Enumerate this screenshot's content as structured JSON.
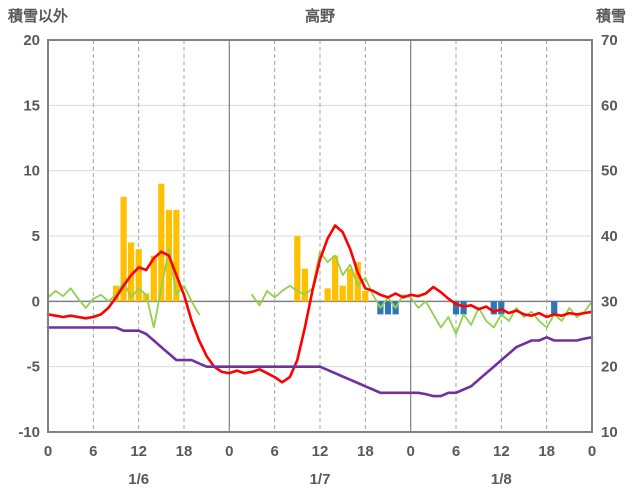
{
  "header": {
    "left_axis_label": "積雪以外",
    "title": "高野",
    "right_axis_label": "積雪"
  },
  "chart_data": {
    "type": "combo",
    "title": "高野",
    "legend": "none",
    "grid": true,
    "colors": {
      "h_grid": "#D9D9D9",
      "v_grid_dashed": "#A6A6A6",
      "axis": "#808080",
      "text": "#595959",
      "bars_orange": "#FFC000",
      "bars_blue": "#2E75B6",
      "line_red": "#FF0000",
      "line_green": "#92D050",
      "line_purple": "#7030A0"
    },
    "x_axis": {
      "min": 0,
      "max": 72,
      "hour_ticks": [
        0,
        6,
        12,
        18,
        24,
        30,
        36,
        42,
        48,
        54,
        60,
        66,
        72
      ],
      "hour_labels": [
        "0",
        "6",
        "12",
        "18",
        "0",
        "6",
        "12",
        "18",
        "0",
        "6",
        "12",
        "18",
        "0"
      ],
      "day_boundaries": [
        24,
        48
      ],
      "day_centers": [
        12,
        36,
        60
      ],
      "day_labels": [
        "1/6",
        "1/7",
        "1/8"
      ]
    },
    "left_axis": {
      "label": "積雪以外",
      "min": -10,
      "max": 20,
      "ticks": [
        20,
        15,
        10,
        5,
        0,
        -5,
        -10
      ]
    },
    "right_axis": {
      "label": "積雪",
      "min": 10,
      "max": 70,
      "ticks": [
        70,
        60,
        50,
        40,
        30,
        20,
        10
      ]
    },
    "series": [
      {
        "name": "bars-orange",
        "type": "bar",
        "axis": "left",
        "color": "#FFC000",
        "points": [
          [
            9,
            1.2
          ],
          [
            10,
            8
          ],
          [
            11,
            4.5
          ],
          [
            12,
            4
          ],
          [
            13,
            0.6
          ],
          [
            14,
            3.5
          ],
          [
            15,
            9
          ],
          [
            16,
            7
          ],
          [
            17,
            7
          ],
          [
            33,
            5
          ],
          [
            34,
            2.5
          ],
          [
            37,
            1
          ],
          [
            38,
            3.5
          ],
          [
            39,
            1.2
          ],
          [
            40,
            2.5
          ],
          [
            41,
            3
          ],
          [
            42,
            0.8
          ]
        ]
      },
      {
        "name": "bars-blue-negative",
        "type": "bar",
        "axis": "left",
        "color": "#2E75B6",
        "points": [
          [
            44,
            -1
          ],
          [
            45,
            -1
          ],
          [
            46,
            -1
          ],
          [
            54,
            -1
          ],
          [
            55,
            -1
          ],
          [
            59,
            -1
          ],
          [
            60,
            -1
          ],
          [
            67,
            -1
          ]
        ]
      },
      {
        "name": "line-green",
        "type": "line",
        "axis": "left",
        "color": "#92D050",
        "stroke_width": 1.8,
        "x_start": 0,
        "x_step": 1,
        "values": [
          0.3,
          0.8,
          0.4,
          1.0,
          0.2,
          -0.5,
          0.2,
          0.5,
          0.0,
          0.5,
          1.5,
          0.3,
          1.0,
          0.5,
          -2.0,
          1.0,
          4.0,
          0.5,
          1.2,
          0.0,
          -1.0,
          null,
          null,
          null,
          null,
          null,
          null,
          0.5,
          -0.3,
          0.8,
          0.3,
          0.8,
          1.2,
          0.8,
          0.5,
          1.0,
          3.8,
          3.0,
          3.5,
          2.0,
          2.8,
          1.2,
          1.8,
          0.5,
          -0.5,
          0.3,
          -0.5,
          0.5,
          0.3,
          -0.5,
          0.0,
          -1.0,
          -2.0,
          -1.2,
          -2.5,
          -1.0,
          -1.8,
          -0.5,
          -1.5,
          -2.0,
          -1.0,
          -1.5,
          -0.5,
          -1.2,
          -0.8,
          -1.5,
          -2.0,
          -1.0,
          -1.5,
          -0.5,
          -1.2,
          -0.8,
          0.0
        ]
      },
      {
        "name": "line-red-temperature",
        "type": "line",
        "axis": "left",
        "color": "#FF0000",
        "stroke_width": 2.6,
        "x_start": 0,
        "x_step": 1,
        "values": [
          -1.0,
          -1.1,
          -1.2,
          -1.1,
          -1.2,
          -1.3,
          -1.2,
          -1.0,
          -0.5,
          0.3,
          1.2,
          2.0,
          2.6,
          2.4,
          3.3,
          3.8,
          3.5,
          2.0,
          0.5,
          -1.5,
          -3.0,
          -4.2,
          -5.0,
          -5.4,
          -5.5,
          -5.3,
          -5.5,
          -5.4,
          -5.2,
          -5.5,
          -5.8,
          -6.2,
          -5.8,
          -4.5,
          -2.0,
          0.8,
          3.2,
          4.8,
          5.8,
          5.3,
          4.0,
          2.2,
          1.0,
          0.8,
          0.5,
          0.3,
          0.6,
          0.3,
          0.5,
          0.4,
          0.6,
          1.1,
          0.7,
          0.2,
          -0.2,
          -0.4,
          -0.3,
          -0.6,
          -0.4,
          -0.8,
          -0.6,
          -0.9,
          -0.7,
          -1.0,
          -1.1,
          -0.9,
          -1.2,
          -1.0,
          -1.1,
          -0.9,
          -1.0,
          -0.9,
          -0.8
        ]
      },
      {
        "name": "line-purple-snow-depth",
        "type": "line",
        "axis": "right",
        "color": "#7030A0",
        "stroke_width": 2.6,
        "x_start": 0,
        "x_step": 1,
        "values": [
          26,
          26,
          26,
          26,
          26,
          26,
          26,
          26,
          26,
          26,
          25.5,
          25.5,
          25.5,
          25,
          24,
          23,
          22,
          21,
          21,
          21,
          20.5,
          20,
          20,
          20,
          20,
          20,
          20,
          20,
          20,
          20,
          20,
          20,
          20,
          20,
          20,
          20,
          20,
          19.5,
          19,
          18.5,
          18,
          17.5,
          17,
          16.5,
          16,
          16,
          16,
          16,
          16,
          16,
          15.8,
          15.5,
          15.5,
          16,
          16,
          16.5,
          17,
          18,
          19,
          20,
          21,
          22,
          23,
          23.5,
          24,
          24,
          24.5,
          24,
          24,
          24,
          24,
          24.3,
          24.5
        ]
      }
    ]
  }
}
